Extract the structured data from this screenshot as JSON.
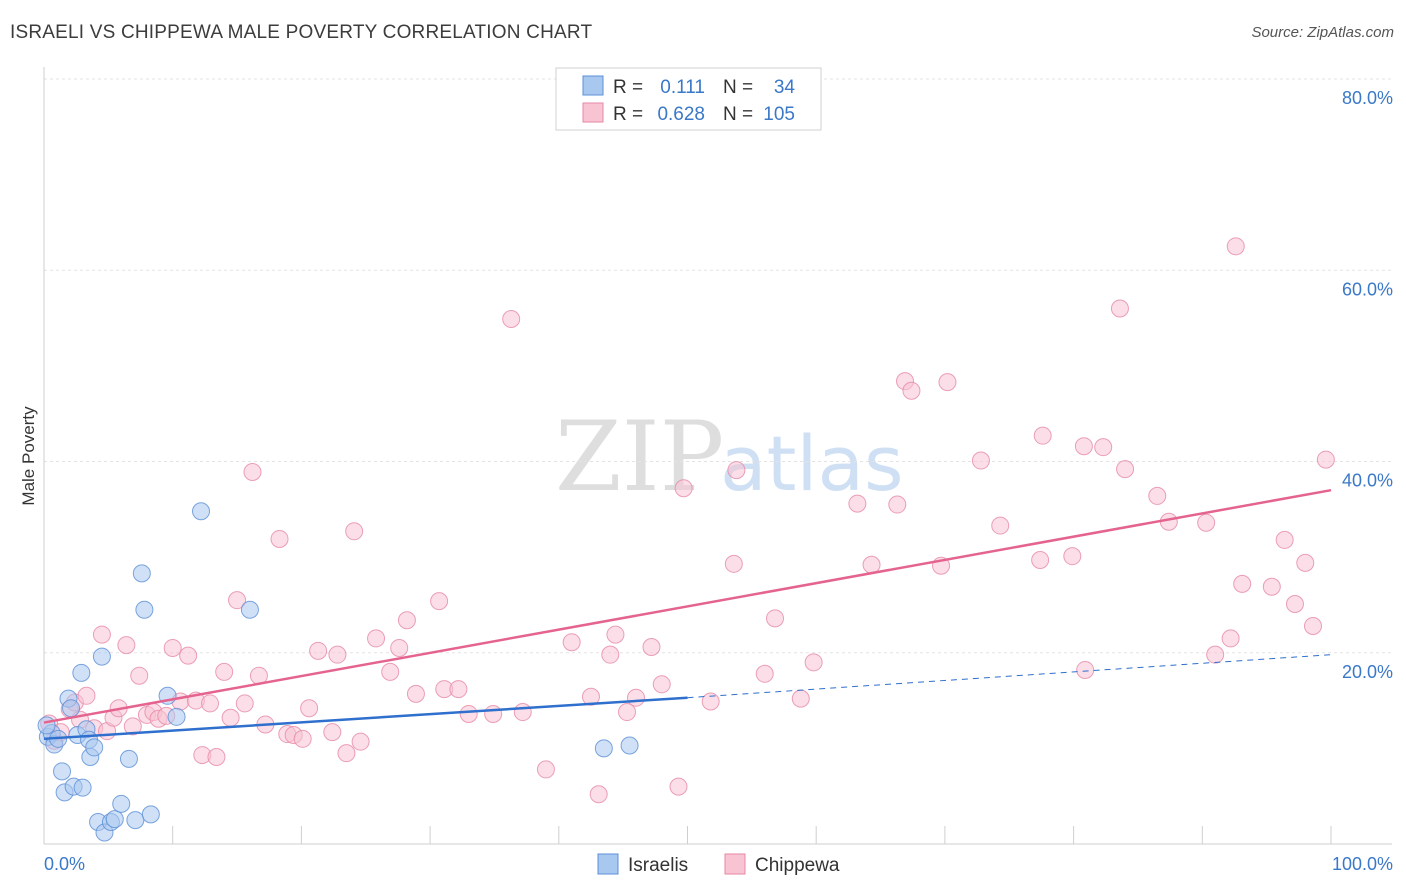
{
  "title": "ISRAELI VS CHIPPEWA MALE POVERTY CORRELATION CHART",
  "source": "Source: ZipAtlas.com",
  "watermark": {
    "zip": "ZIP",
    "atlas": "atlas"
  },
  "stats_legend": {
    "rows": [
      {
        "r_label": "R =",
        "r_value": "0.111",
        "n_label": "N =",
        "n_value": "34",
        "color": "#a9c8f0",
        "stroke": "#5b8fd6"
      },
      {
        "r_label": "R =",
        "r_value": "0.628",
        "n_label": "N =",
        "n_value": "105",
        "color": "#f8c3d3",
        "stroke": "#e68aa6"
      }
    ]
  },
  "chart_data": {
    "type": "scatter",
    "xlabel": "",
    "ylabel": "Male Poverty",
    "xlim": [
      0,
      100
    ],
    "ylim": [
      0,
      80
    ],
    "x_tick_labels": [
      "0.0%",
      "100.0%"
    ],
    "y_tick_labels": [
      "20.0%",
      "40.0%",
      "60.0%",
      "80.0%"
    ],
    "y_ticks": [
      20,
      40,
      60,
      80
    ],
    "grid": true,
    "series": [
      {
        "name": "Israelis",
        "color": "#a9c8f0",
        "stroke": "#5b8fd6",
        "trend": {
          "x0": 0,
          "y0": 11.0,
          "x1": 50,
          "y1": 15.3,
          "dash_to": 100,
          "dash_y": 19.8,
          "color": "#2f6fcd"
        },
        "points": [
          [
            0.3,
            11.2
          ],
          [
            0.6,
            11.6
          ],
          [
            0.8,
            10.4
          ],
          [
            1.1,
            11.0
          ],
          [
            1.4,
            7.6
          ],
          [
            1.6,
            5.4
          ],
          [
            1.9,
            15.2
          ],
          [
            2.1,
            14.2
          ],
          [
            2.3,
            6.0
          ],
          [
            2.6,
            11.4
          ],
          [
            2.9,
            17.9
          ],
          [
            3.0,
            5.9
          ],
          [
            3.3,
            12.0
          ],
          [
            3.5,
            10.9
          ],
          [
            3.6,
            9.1
          ],
          [
            3.9,
            10.1
          ],
          [
            4.2,
            2.3
          ],
          [
            4.5,
            19.6
          ],
          [
            4.7,
            1.2
          ],
          [
            5.2,
            2.3
          ],
          [
            5.5,
            2.6
          ],
          [
            6.0,
            4.2
          ],
          [
            6.6,
            8.9
          ],
          [
            7.1,
            2.5
          ],
          [
            7.6,
            28.3
          ],
          [
            7.8,
            24.5
          ],
          [
            8.3,
            3.1
          ],
          [
            9.6,
            15.5
          ],
          [
            10.3,
            13.3
          ],
          [
            12.2,
            34.8
          ],
          [
            16.0,
            24.5
          ],
          [
            43.5,
            10.0
          ],
          [
            45.5,
            10.3
          ],
          [
            0.2,
            12.4
          ]
        ]
      },
      {
        "name": "Chippewa",
        "color": "#f8c3d3",
        "stroke": "#e68aa6",
        "trend": {
          "x0": 0,
          "y0": 12.7,
          "x1": 100,
          "y1": 37.0,
          "color": "#e4638f"
        },
        "points": [
          [
            0.4,
            12.6
          ],
          [
            0.8,
            10.8
          ],
          [
            1.3,
            11.7
          ],
          [
            2.0,
            14.1
          ],
          [
            2.4,
            14.8
          ],
          [
            2.8,
            13.0
          ],
          [
            3.3,
            15.5
          ],
          [
            3.9,
            12.1
          ],
          [
            4.5,
            21.9
          ],
          [
            4.9,
            11.8
          ],
          [
            5.4,
            13.2
          ],
          [
            5.8,
            14.2
          ],
          [
            6.4,
            20.8
          ],
          [
            6.9,
            12.3
          ],
          [
            7.4,
            17.6
          ],
          [
            8.0,
            13.5
          ],
          [
            8.5,
            13.8
          ],
          [
            8.9,
            13.1
          ],
          [
            9.5,
            13.4
          ],
          [
            10.0,
            20.5
          ],
          [
            10.6,
            14.9
          ],
          [
            11.2,
            19.7
          ],
          [
            11.8,
            15.0
          ],
          [
            12.3,
            9.3
          ],
          [
            12.9,
            14.7
          ],
          [
            13.4,
            9.1
          ],
          [
            14.0,
            18.0
          ],
          [
            14.5,
            13.2
          ],
          [
            15.0,
            25.5
          ],
          [
            15.6,
            14.7
          ],
          [
            16.2,
            38.9
          ],
          [
            16.7,
            17.6
          ],
          [
            17.2,
            12.5
          ],
          [
            18.3,
            31.9
          ],
          [
            18.9,
            11.5
          ],
          [
            19.4,
            11.4
          ],
          [
            20.1,
            11.0
          ],
          [
            20.6,
            14.2
          ],
          [
            21.3,
            20.2
          ],
          [
            22.4,
            11.7
          ],
          [
            22.8,
            19.8
          ],
          [
            23.5,
            9.5
          ],
          [
            24.1,
            32.7
          ],
          [
            24.6,
            10.7
          ],
          [
            25.8,
            21.5
          ],
          [
            26.9,
            18.0
          ],
          [
            27.6,
            20.5
          ],
          [
            28.2,
            23.4
          ],
          [
            28.9,
            15.7
          ],
          [
            30.7,
            25.4
          ],
          [
            31.1,
            16.2
          ],
          [
            32.2,
            16.2
          ],
          [
            33.0,
            13.6
          ],
          [
            34.9,
            13.6
          ],
          [
            36.3,
            54.9
          ],
          [
            37.2,
            13.8
          ],
          [
            39.0,
            7.8
          ],
          [
            41.0,
            21.1
          ],
          [
            42.5,
            15.4
          ],
          [
            43.1,
            5.2
          ],
          [
            44.0,
            19.8
          ],
          [
            44.4,
            21.9
          ],
          [
            45.3,
            13.8
          ],
          [
            46.0,
            15.3
          ],
          [
            47.2,
            20.6
          ],
          [
            48.0,
            16.7
          ],
          [
            49.3,
            6.0
          ],
          [
            49.7,
            37.2
          ],
          [
            51.8,
            14.9
          ],
          [
            53.6,
            29.3
          ],
          [
            53.8,
            39.1
          ],
          [
            56.0,
            17.8
          ],
          [
            56.8,
            23.6
          ],
          [
            58.8,
            15.2
          ],
          [
            59.8,
            19.0
          ],
          [
            63.2,
            35.6
          ],
          [
            64.3,
            29.2
          ],
          [
            66.3,
            35.5
          ],
          [
            66.9,
            48.4
          ],
          [
            67.4,
            47.4
          ],
          [
            69.7,
            29.1
          ],
          [
            70.2,
            48.3
          ],
          [
            72.8,
            40.1
          ],
          [
            74.3,
            33.3
          ],
          [
            77.4,
            29.7
          ],
          [
            77.6,
            42.7
          ],
          [
            79.9,
            30.1
          ],
          [
            80.8,
            41.6
          ],
          [
            80.9,
            18.2
          ],
          [
            82.3,
            41.5
          ],
          [
            83.6,
            56.0
          ],
          [
            84.0,
            39.2
          ],
          [
            86.5,
            36.4
          ],
          [
            87.4,
            33.7
          ],
          [
            90.3,
            33.6
          ],
          [
            91.0,
            19.8
          ],
          [
            92.2,
            21.5
          ],
          [
            92.6,
            62.5
          ],
          [
            93.1,
            27.2
          ],
          [
            95.4,
            26.9
          ],
          [
            96.4,
            31.8
          ],
          [
            97.2,
            25.1
          ],
          [
            98.0,
            29.4
          ],
          [
            98.6,
            22.8
          ],
          [
            99.6,
            40.2
          ]
        ]
      }
    ]
  }
}
